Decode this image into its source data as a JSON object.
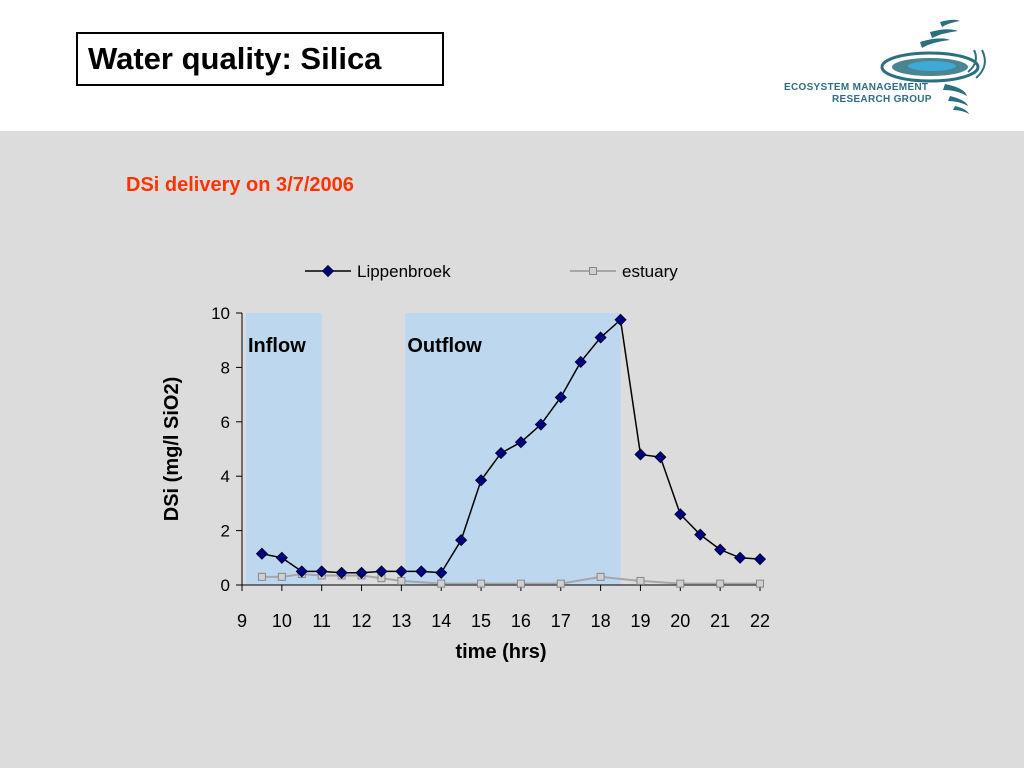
{
  "slide": {
    "title": "Water quality: Silica",
    "logo_line1": "ECOSYSTEM MANAGEMENT",
    "logo_line2": "RESEARCH GROUP"
  },
  "colors": {
    "content_background": "#dcdcdc",
    "subtitle": "#ff3300",
    "shade": "#bdd7ee",
    "lippenbroek": "#000080",
    "estuary": "#a6a6a6",
    "logo": "#2c6f80"
  },
  "chart_data": {
    "type": "line",
    "title": "DSi delivery on 3/7/2006",
    "xlabel": "time (hrs)",
    "ylabel": "DSi (mg/l SiO2)",
    "xlim": [
      9,
      22
    ],
    "ylim": [
      0,
      10
    ],
    "xticks": [
      "9",
      "10",
      "11",
      "12",
      "13",
      "14",
      "15",
      "16",
      "17",
      "18",
      "19",
      "20",
      "21",
      "22"
    ],
    "yticks": [
      "0",
      "2",
      "4",
      "6",
      "8",
      "10"
    ],
    "grid": false,
    "legend": "top",
    "shaded_regions": [
      {
        "label": "Inflow",
        "x0": 9.1,
        "x1": 11.0
      },
      {
        "label": "Outflow",
        "x0": 13.1,
        "x1": 18.5
      }
    ],
    "series": [
      {
        "name": "Lippenbroek",
        "marker": "diamond",
        "x": [
          9.5,
          10.0,
          10.5,
          11.0,
          11.5,
          12.0,
          12.5,
          13.0,
          13.5,
          14.0,
          14.5,
          15.0,
          15.5,
          16.0,
          16.5,
          17.0,
          17.5,
          18.0,
          18.5,
          19.0,
          19.5,
          20.0,
          20.5,
          21.0,
          21.5,
          22.0
        ],
        "y": [
          1.15,
          1.0,
          0.5,
          0.5,
          0.45,
          0.45,
          0.5,
          0.5,
          0.5,
          0.45,
          1.65,
          3.85,
          4.85,
          5.25,
          5.9,
          6.9,
          8.2,
          9.1,
          9.75,
          4.8,
          4.7,
          2.6,
          1.85,
          1.3,
          1.0,
          0.95
        ]
      },
      {
        "name": "estuary",
        "marker": "square",
        "x": [
          9.5,
          10.0,
          10.5,
          11.0,
          11.5,
          12.0,
          12.5,
          13.0,
          14.0,
          15.0,
          16.0,
          17.0,
          18.0,
          19.0,
          20.0,
          21.0,
          22.0
        ],
        "y": [
          0.3,
          0.3,
          0.4,
          0.35,
          0.35,
          0.35,
          0.25,
          0.15,
          0.05,
          0.05,
          0.05,
          0.05,
          0.3,
          0.15,
          0.05,
          0.05,
          0.05
        ]
      }
    ]
  }
}
